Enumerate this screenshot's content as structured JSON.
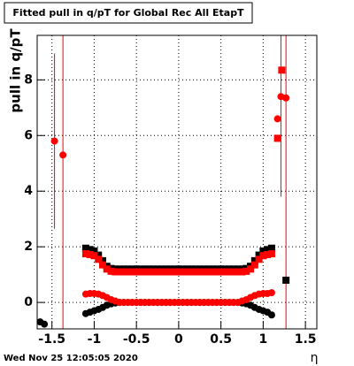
{
  "chart_data": {
    "type": "scatter",
    "title": "Fitted pull in q/pT for Global Rec All EtapT",
    "y_label": "pull in q/pT",
    "x_label": "η",
    "footer": "Wed Nov 25 12:05:05 2020",
    "xlim": [
      -1.675,
      1.635
    ],
    "ylim": [
      -0.95,
      9.6
    ],
    "xticks": [
      -1.5,
      -1,
      -0.5,
      0,
      0.5,
      1,
      1.5
    ],
    "yticks": [
      0,
      2,
      4,
      6,
      8
    ],
    "grid": true,
    "x": [
      -1.1,
      -1.05,
      -1,
      -0.95,
      -0.9,
      -0.85,
      -0.8,
      -0.75,
      -0.7,
      -0.65,
      -0.6,
      -0.55,
      -0.5,
      -0.45,
      -0.4,
      -0.35,
      -0.3,
      -0.25,
      -0.2,
      -0.15,
      -0.1,
      -0.05,
      0,
      0.05,
      0.1,
      0.15,
      0.2,
      0.25,
      0.3,
      0.35,
      0.4,
      0.45,
      0.5,
      0.55,
      0.6,
      0.65,
      0.7,
      0.75,
      0.8,
      0.85,
      0.9,
      0.95,
      1,
      1.05,
      1.1
    ],
    "series": [
      {
        "color": "#000000",
        "marker": "square",
        "values": [
          1.95,
          1.9,
          1.85,
          1.7,
          1.5,
          1.3,
          1.22,
          1.2,
          1.2,
          1.2,
          1.2,
          1.2,
          1.2,
          1.2,
          1.2,
          1.2,
          1.2,
          1.2,
          1.2,
          1.2,
          1.2,
          1.2,
          1.2,
          1.2,
          1.2,
          1.2,
          1.2,
          1.2,
          1.2,
          1.2,
          1.2,
          1.2,
          1.2,
          1.2,
          1.2,
          1.2,
          1.2,
          1.2,
          1.22,
          1.3,
          1.5,
          1.7,
          1.85,
          1.9,
          1.95
        ]
      },
      {
        "color": "#ff0000",
        "marker": "square",
        "values": [
          1.75,
          1.72,
          1.68,
          1.55,
          1.35,
          1.2,
          1.12,
          1.1,
          1.1,
          1.1,
          1.1,
          1.1,
          1.1,
          1.1,
          1.1,
          1.1,
          1.1,
          1.1,
          1.1,
          1.1,
          1.1,
          1.1,
          1.1,
          1.1,
          1.1,
          1.1,
          1.1,
          1.1,
          1.1,
          1.1,
          1.1,
          1.1,
          1.1,
          1.1,
          1.1,
          1.1,
          1.1,
          1.1,
          1.12,
          1.2,
          1.35,
          1.55,
          1.68,
          1.72,
          1.75
        ]
      },
      {
        "color": "#000000",
        "marker": "circle",
        "values": [
          -0.4,
          -0.35,
          -0.3,
          -0.25,
          -0.18,
          -0.1,
          -0.05,
          -0.02,
          0,
          0,
          0,
          0,
          0,
          0,
          0,
          0,
          0,
          0,
          0,
          0,
          0,
          0,
          0,
          0,
          0,
          0,
          0,
          0,
          0,
          0,
          0,
          0,
          0,
          0,
          0,
          0,
          0,
          -0.02,
          -0.05,
          -0.1,
          -0.18,
          -0.25,
          -0.3,
          -0.35,
          -0.45
        ]
      },
      {
        "color": "#ff0000",
        "marker": "circle",
        "values": [
          0.3,
          0.32,
          0.32,
          0.3,
          0.25,
          0.18,
          0.1,
          0.05,
          0,
          0,
          0,
          0,
          0,
          0,
          0,
          0,
          0,
          0,
          0,
          0,
          0,
          0,
          0,
          0,
          0,
          0,
          0,
          0,
          0,
          0,
          0,
          0,
          0,
          0,
          0,
          0,
          0,
          0.05,
          0.1,
          0.18,
          0.25,
          0.3,
          0.32,
          0.32,
          0.35
        ]
      },
      {
        "color": "#ff0000",
        "marker": "circle",
        "x": [
          -1.47,
          -1.37,
          1.17,
          1.21,
          1.27
        ],
        "values": [
          5.8,
          5.3,
          6.6,
          7.4,
          7.35
        ],
        "errors": [
          3.15,
          6.5,
          0,
          3.6,
          9
        ]
      },
      {
        "color": "#ff0000",
        "marker": "square",
        "x": [
          1.17,
          1.22
        ],
        "values": [
          5.9,
          8.35
        ]
      },
      {
        "color": "#000000",
        "marker": "square",
        "x": [
          1.27
        ],
        "values": [
          0.8
        ]
      },
      {
        "color": "#000000",
        "marker": "circle",
        "x": [
          -1.64,
          -1.59
        ],
        "values": [
          -0.7,
          -0.78
        ]
      }
    ]
  }
}
